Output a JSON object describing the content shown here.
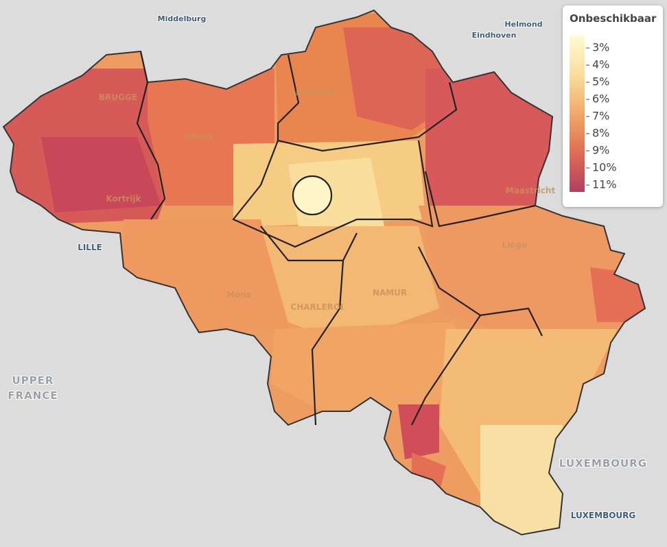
{
  "legend": {
    "title": "Onbeschikbaar",
    "ticks": [
      {
        "value": 3,
        "label": "3%"
      },
      {
        "value": 4,
        "label": "4%"
      },
      {
        "value": 5,
        "label": "5%"
      },
      {
        "value": 6,
        "label": "6%"
      },
      {
        "value": 7,
        "label": "7%"
      },
      {
        "value": 8,
        "label": "8%"
      },
      {
        "value": 9,
        "label": "9%"
      },
      {
        "value": 10,
        "label": "10%"
      },
      {
        "value": 11,
        "label": "11%"
      }
    ]
  },
  "places": [
    {
      "label": "Middelburg"
    },
    {
      "label": "Helmond"
    },
    {
      "label": "Eindhoven"
    },
    {
      "label": "BRUGGE"
    },
    {
      "label": "ANTWERP"
    },
    {
      "label": "Ghent"
    },
    {
      "label": "Kortrijk"
    },
    {
      "label": "LILLE"
    },
    {
      "label": "Maastricht"
    },
    {
      "label": "Liège"
    },
    {
      "label": "Mons"
    },
    {
      "label": "CHARLEROI"
    },
    {
      "label": "NAMUR"
    },
    {
      "label": "UPPER"
    },
    {
      "label": "FRANCE"
    },
    {
      "label": "LUXEMBOURG"
    },
    {
      "label": "LUXEMBOURG"
    }
  ]
}
